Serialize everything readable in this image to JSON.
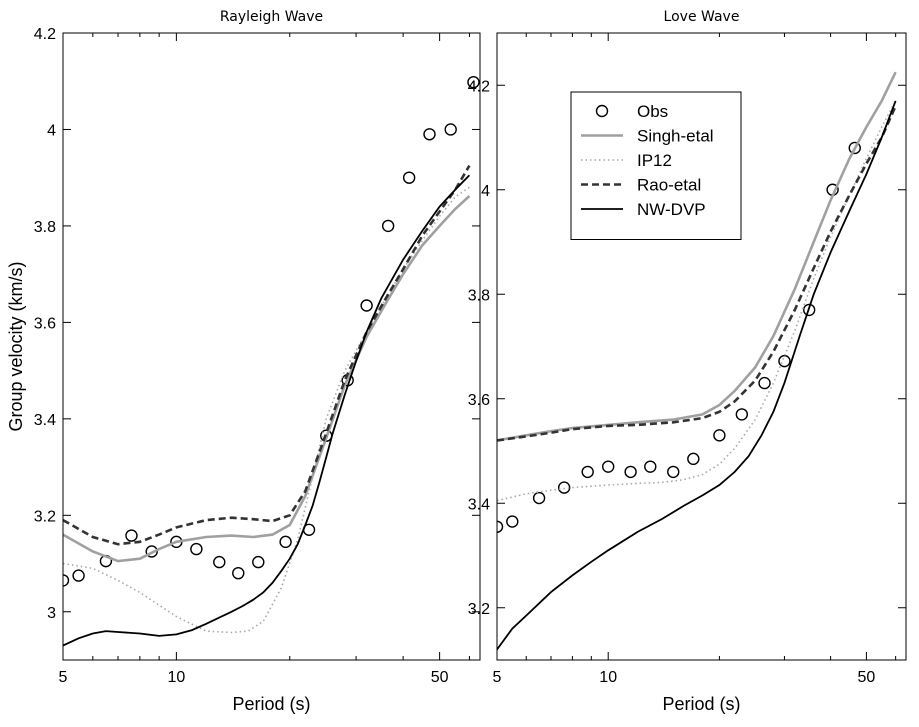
{
  "chart_data": [
    {
      "type": "line",
      "title": "Rayleigh Wave",
      "xlabel": "Period (s)",
      "ylabel": "Group velocity (km/s)",
      "xscale": "log",
      "xlim": [
        5,
        64
      ],
      "ylim": [
        2.9,
        4.2
      ],
      "xticks": [
        5,
        10,
        50
      ],
      "xtick_labels": [
        "5",
        "10",
        "50"
      ],
      "yticks": [
        3.0,
        3.2,
        3.4,
        3.6,
        3.8,
        4.0,
        4.2
      ],
      "ytick_labels": [
        "3",
        "3.2",
        "3.4",
        "3.6",
        "3.8",
        "4",
        "4.2"
      ],
      "legend": null,
      "series": [
        {
          "name": "Obs",
          "style": "circles",
          "color": "#000000",
          "x": [
            5,
            5.5,
            6.5,
            7.6,
            8.6,
            10,
            11.3,
            13,
            14.6,
            16.5,
            19.5,
            22.5,
            25,
            28.5,
            32,
            36.5,
            41.5,
            47,
            53.5,
            61.5
          ],
          "y": [
            3.065,
            3.075,
            3.105,
            3.158,
            3.125,
            3.145,
            3.13,
            3.103,
            3.08,
            3.103,
            3.145,
            3.17,
            3.365,
            3.48,
            3.635,
            3.8,
            3.9,
            3.99,
            4.0,
            4.098
          ]
        },
        {
          "name": "Singh-etal",
          "style": "solid",
          "color": "#a0a0a0",
          "x": [
            5,
            6,
            7,
            8,
            9,
            10,
            12,
            14,
            16,
            18,
            20,
            22,
            25,
            28,
            32,
            36,
            40,
            45,
            50,
            55,
            60
          ],
          "y": [
            3.16,
            3.125,
            3.105,
            3.11,
            3.13,
            3.145,
            3.155,
            3.158,
            3.155,
            3.16,
            3.18,
            3.24,
            3.36,
            3.47,
            3.57,
            3.64,
            3.7,
            3.76,
            3.8,
            3.835,
            3.862
          ]
        },
        {
          "name": "IP12",
          "style": "dotted",
          "color": "#a8a8a8",
          "x": [
            5,
            6,
            7,
            8,
            10,
            12,
            14,
            15.5,
            17,
            19,
            21,
            23,
            25,
            28,
            32,
            36,
            40,
            45,
            50,
            55,
            60
          ],
          "y": [
            3.1,
            3.09,
            3.065,
            3.04,
            2.99,
            2.96,
            2.957,
            2.96,
            2.98,
            3.05,
            3.15,
            3.28,
            3.4,
            3.5,
            3.58,
            3.65,
            3.71,
            3.77,
            3.82,
            3.86,
            3.88
          ]
        },
        {
          "name": "Rao-etal",
          "style": "dashed",
          "color": "#333333",
          "x": [
            5,
            6,
            7,
            8,
            9,
            10,
            12,
            14,
            16,
            18,
            20,
            22,
            25,
            28,
            32,
            36,
            40,
            45,
            50,
            55,
            60
          ],
          "y": [
            3.19,
            3.155,
            3.14,
            3.145,
            3.16,
            3.175,
            3.19,
            3.195,
            3.192,
            3.188,
            3.2,
            3.25,
            3.37,
            3.48,
            3.58,
            3.65,
            3.71,
            3.78,
            3.83,
            3.875,
            3.925
          ]
        },
        {
          "name": "NW-DVP",
          "style": "solid",
          "color": "#000000",
          "x": [
            5,
            5.5,
            6,
            6.5,
            7,
            8,
            9,
            10,
            11,
            12,
            13,
            14,
            15,
            16,
            17,
            18,
            19,
            20,
            21,
            22,
            23,
            24,
            25,
            26,
            28,
            30,
            32,
            35,
            40,
            45,
            50,
            55,
            60
          ],
          "y": [
            2.93,
            2.945,
            2.955,
            2.96,
            2.958,
            2.955,
            2.95,
            2.953,
            2.962,
            2.975,
            2.988,
            3.0,
            3.012,
            3.025,
            3.04,
            3.06,
            3.085,
            3.11,
            3.14,
            3.18,
            3.22,
            3.27,
            3.32,
            3.37,
            3.45,
            3.52,
            3.58,
            3.65,
            3.73,
            3.79,
            3.84,
            3.875,
            3.905
          ]
        }
      ]
    },
    {
      "type": "line",
      "title": "Love Wave",
      "xlabel": "Period (s)",
      "ylabel": "",
      "xscale": "log",
      "xlim": [
        5,
        64
      ],
      "ylim": [
        3.1,
        4.3
      ],
      "xticks": [
        5,
        10,
        50
      ],
      "xtick_labels": [
        "5",
        "10",
        "50"
      ],
      "yticks": [
        3.2,
        3.4,
        3.6,
        3.8,
        4.0,
        4.2
      ],
      "ytick_labels": [
        "3.2",
        "3.4",
        "3.6",
        "3.8",
        "4",
        "4.2"
      ],
      "legend": "top-left",
      "series": [
        {
          "name": "Obs",
          "style": "circles",
          "color": "#000000",
          "x": [
            5,
            5.5,
            6.5,
            7.6,
            8.8,
            10,
            11.5,
            13,
            15,
            17,
            20,
            23,
            26.5,
            30,
            35,
            40.5,
            46.5
          ],
          "y": [
            3.355,
            3.365,
            3.41,
            3.43,
            3.46,
            3.47,
            3.46,
            3.47,
            3.46,
            3.485,
            3.53,
            3.57,
            3.63,
            3.672,
            3.77,
            4.0,
            4.08
          ]
        },
        {
          "name": "Singh-etal",
          "style": "solid",
          "color": "#a0a0a0",
          "x": [
            5,
            6,
            7,
            8,
            10,
            12,
            15,
            18,
            20,
            22,
            25,
            28,
            32,
            36,
            40,
            45,
            50,
            55,
            60
          ],
          "y": [
            3.52,
            3.53,
            3.538,
            3.544,
            3.55,
            3.555,
            3.56,
            3.57,
            3.588,
            3.615,
            3.66,
            3.72,
            3.81,
            3.9,
            3.98,
            4.06,
            4.12,
            4.17,
            4.225
          ]
        },
        {
          "name": "IP12",
          "style": "dotted",
          "color": "#a8a8a8",
          "x": [
            5,
            6,
            7,
            8,
            10,
            12,
            14,
            16,
            18,
            20,
            22,
            25,
            28,
            32,
            36,
            40,
            45,
            50,
            55,
            60
          ],
          "y": [
            3.405,
            3.418,
            3.425,
            3.43,
            3.435,
            3.438,
            3.44,
            3.445,
            3.455,
            3.475,
            3.505,
            3.56,
            3.63,
            3.73,
            3.83,
            3.91,
            3.99,
            4.06,
            4.12,
            4.17
          ]
        },
        {
          "name": "Rao-etal",
          "style": "dashed",
          "color": "#333333",
          "x": [
            5,
            6,
            7,
            8,
            10,
            12,
            15,
            18,
            20,
            22,
            25,
            28,
            32,
            36,
            40,
            45,
            50,
            55,
            60
          ],
          "y": [
            3.52,
            3.528,
            3.535,
            3.542,
            3.548,
            3.55,
            3.555,
            3.563,
            3.575,
            3.595,
            3.635,
            3.69,
            3.77,
            3.85,
            3.92,
            3.99,
            4.05,
            4.1,
            4.16
          ]
        },
        {
          "name": "NW-DVP",
          "style": "solid",
          "color": "#000000",
          "x": [
            5,
            5.5,
            6,
            7,
            8,
            9,
            10,
            12,
            14,
            16,
            18,
            20,
            22,
            24,
            26,
            28,
            30,
            33,
            36,
            40,
            45,
            50,
            55,
            60
          ],
          "y": [
            3.12,
            3.16,
            3.185,
            3.23,
            3.262,
            3.288,
            3.31,
            3.345,
            3.37,
            3.395,
            3.415,
            3.435,
            3.46,
            3.49,
            3.53,
            3.575,
            3.63,
            3.72,
            3.8,
            3.88,
            3.96,
            4.03,
            4.1,
            4.17
          ]
        }
      ]
    }
  ]
}
